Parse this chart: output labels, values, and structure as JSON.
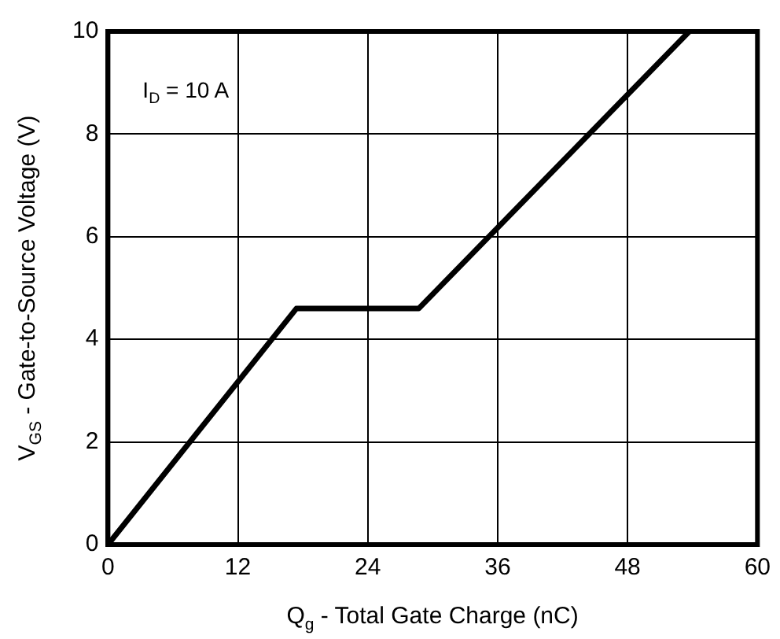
{
  "chart_data": {
    "type": "line",
    "xlabel": "Q$_{g}$ - Total Gate Charge (nC)",
    "ylabel": "V$_{GS}$ - Gate-to-Source Voltage (V)",
    "annotations": [
      "I$_{D}$ = 10 A"
    ],
    "series": [
      {
        "color": "#000000",
        "x": [
          0,
          17.4,
          28.7,
          53.7
        ],
        "values": [
          0,
          4.6,
          4.6,
          10
        ]
      }
    ],
    "xlim": [
      0,
      60
    ],
    "xticks": [
      0,
      12,
      24,
      36,
      48,
      60
    ],
    "ylim": [
      0,
      10
    ],
    "yticks": [
      0,
      2,
      4,
      6,
      8,
      10
    ],
    "grid": true,
    "legend": false,
    "marker": "none",
    "line_style": "solid"
  }
}
